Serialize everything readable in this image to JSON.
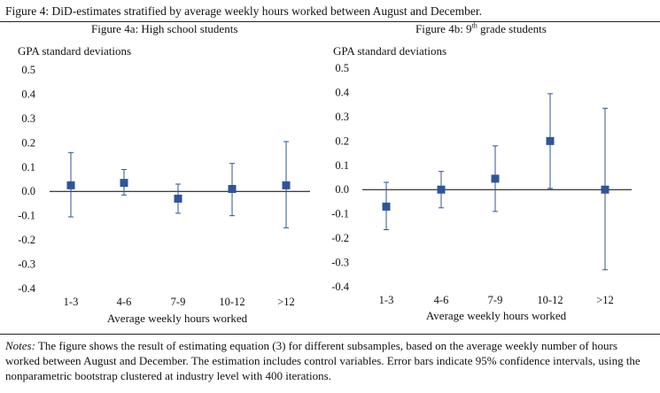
{
  "figure": {
    "title": "Figure 4: DiD-estimates stratified by average weekly hours worked between August and December.",
    "notes_label": "Notes:",
    "notes_text": " The figure shows the result of estimating equation (3) for different subsamples, based on the average weekly number of hours worked between August and December. The estimation includes control variables. Error bars indicate 95% confidence intervals, using the nonparametric bootstrap clustered at industry level with 400 iterations."
  },
  "colors": {
    "marker": "#2f5597",
    "axis": "#000000",
    "text": "#111111"
  },
  "chart_data": [
    {
      "type": "scatter",
      "title": "Figure 4a: High school students",
      "title_pre": "",
      "title_sup": "",
      "title_post": "",
      "ylabel": "GPA standard deviations",
      "xlabel": "Average weekly hours worked",
      "categories": [
        "1-3",
        "4-6",
        "7-9",
        "10-12",
        ">12"
      ],
      "values": [
        0.025,
        0.035,
        -0.03,
        0.01,
        0.025
      ],
      "ci_low": [
        -0.105,
        -0.015,
        -0.09,
        -0.1,
        -0.15
      ],
      "ci_high": [
        0.16,
        0.09,
        0.03,
        0.115,
        0.205
      ],
      "ylim": [
        -0.4,
        0.5
      ],
      "yticks": [
        "0.5",
        "0.4",
        "0.3",
        "0.2",
        "0.1",
        "0.0",
        "-0.1",
        "-0.2",
        "-0.3",
        "-0.4"
      ],
      "grid": false,
      "marker": "square",
      "error_bars": "95% CI"
    },
    {
      "type": "scatter",
      "title": "",
      "title_pre": "Figure 4b: 9",
      "title_sup": "th",
      "title_post": " grade students",
      "ylabel": "GPA standard deviations",
      "xlabel": "Average weekly hours worked",
      "categories": [
        "1-3",
        "4-6",
        "7-9",
        "10-12",
        ">12"
      ],
      "values": [
        -0.07,
        0.0,
        0.045,
        0.2,
        0.0
      ],
      "ci_low": [
        -0.165,
        -0.075,
        -0.09,
        0.005,
        -0.33
      ],
      "ci_high": [
        0.03,
        0.075,
        0.18,
        0.395,
        0.335
      ],
      "ylim": [
        -0.4,
        0.5
      ],
      "yticks": [
        "0.5",
        "0.4",
        "0.3",
        "0.2",
        "0.1",
        "0.0",
        "-0.1",
        "-0.2",
        "-0.3",
        "-0.4"
      ],
      "grid": false,
      "marker": "square",
      "error_bars": "95% CI"
    }
  ]
}
